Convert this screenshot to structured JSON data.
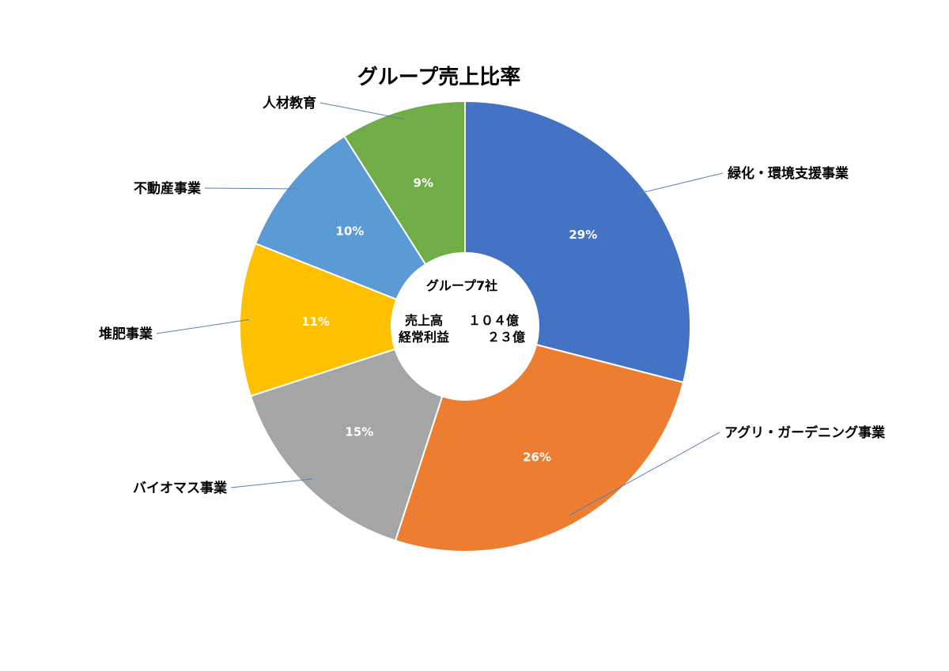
{
  "chart_data": {
    "type": "pie",
    "title": "グループ売上比率",
    "categories": [
      "緑化・環境支援事業",
      "アグリ・ガーデニング事業",
      "バイオマス事業",
      "堆肥事業",
      "不動産事業",
      "人材教育"
    ],
    "values": [
      29,
      26,
      15,
      11,
      10,
      9
    ],
    "value_labels": [
      "29%",
      "26%",
      "15%",
      "11%",
      "10%",
      "9%"
    ],
    "colors": [
      "#4472c4",
      "#ed7d31",
      "#a5a5a5",
      "#ffc000",
      "#5b9bd5",
      "#70ad47"
    ],
    "center_text": {
      "line1": "グループ7社",
      "line2_label": "売上高",
      "line2_value": "１０４億",
      "line3_label": "経常利益",
      "line3_value": "２３億"
    }
  }
}
